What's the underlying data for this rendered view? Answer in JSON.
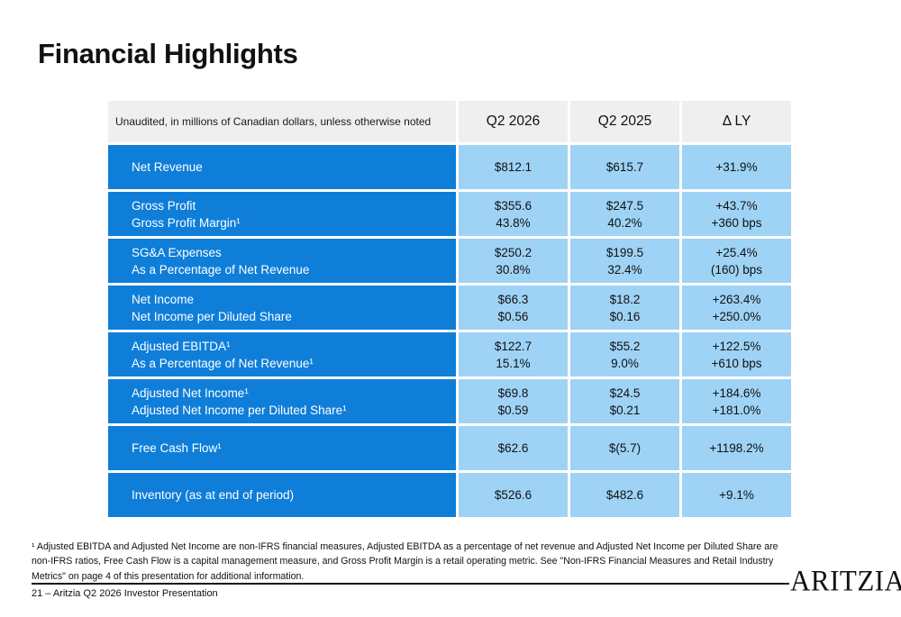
{
  "slide": {
    "title": "Financial Highlights",
    "footnote": "¹ Adjusted EBITDA and Adjusted Net Income are non-IFRS financial measures, Adjusted EBITDA as a percentage of net revenue and Adjusted Net Income per Diluted Share are non-IFRS ratios, Free Cash Flow is a capital management measure, and Gross Profit Margin is a retail operating metric. See \"Non-IFRS Financial Measures and Retail Industry Metrics\" on page 4 of this presentation for additional information.",
    "page_footer": "21 – Aritzia Q2 2026 Investor Presentation",
    "logo": "ARITZIA"
  },
  "colors": {
    "row_label_bg": "#0f7ed9",
    "data_cell_bg": "#9ed3f6",
    "header_bg": "#efefef"
  },
  "table": {
    "header": {
      "note": "Unaudited, in millions of Canadian dollars, unless otherwise noted",
      "col_q2_2026": "Q2 2026",
      "col_q2_2025": "Q2 2025",
      "col_delta": "Δ LY"
    },
    "rows": [
      {
        "label": [
          "Net Revenue"
        ],
        "q2_2026": [
          "$812.1"
        ],
        "q2_2025": [
          "$615.7"
        ],
        "delta_ly": [
          "+31.9%"
        ]
      },
      {
        "label": [
          "Gross Profit",
          "Gross Profit Margin¹"
        ],
        "q2_2026": [
          "$355.6",
          "43.8%"
        ],
        "q2_2025": [
          "$247.5",
          "40.2%"
        ],
        "delta_ly": [
          "+43.7%",
          "+360 bps"
        ]
      },
      {
        "label": [
          "SG&A Expenses",
          "As a Percentage of Net Revenue"
        ],
        "q2_2026": [
          "$250.2",
          "30.8%"
        ],
        "q2_2025": [
          "$199.5",
          "32.4%"
        ],
        "delta_ly": [
          "+25.4%",
          "(160) bps"
        ]
      },
      {
        "label": [
          "Net Income",
          "Net Income per Diluted Share"
        ],
        "q2_2026": [
          "$66.3",
          "$0.56"
        ],
        "q2_2025": [
          "$18.2",
          "$0.16"
        ],
        "delta_ly": [
          "+263.4%",
          "+250.0%"
        ]
      },
      {
        "label": [
          "Adjusted EBITDA¹",
          "As a Percentage of Net Revenue¹"
        ],
        "q2_2026": [
          "$122.7",
          "15.1%"
        ],
        "q2_2025": [
          "$55.2",
          "9.0%"
        ],
        "delta_ly": [
          "+122.5%",
          "+610 bps"
        ]
      },
      {
        "label": [
          "Adjusted Net Income¹",
          "Adjusted Net Income per Diluted Share¹"
        ],
        "q2_2026": [
          "$69.8",
          "$0.59"
        ],
        "q2_2025": [
          "$24.5",
          "$0.21"
        ],
        "delta_ly": [
          "+184.6%",
          "+181.0%"
        ]
      },
      {
        "label": [
          "Free Cash Flow¹"
        ],
        "q2_2026": [
          "$62.6"
        ],
        "q2_2025": [
          "$(5.7)"
        ],
        "delta_ly": [
          "+1198.2%"
        ]
      },
      {
        "label": [
          "Inventory (as at end of period)"
        ],
        "q2_2026": [
          "$526.6"
        ],
        "q2_2025": [
          "$482.6"
        ],
        "delta_ly": [
          "+9.1%"
        ]
      }
    ]
  }
}
